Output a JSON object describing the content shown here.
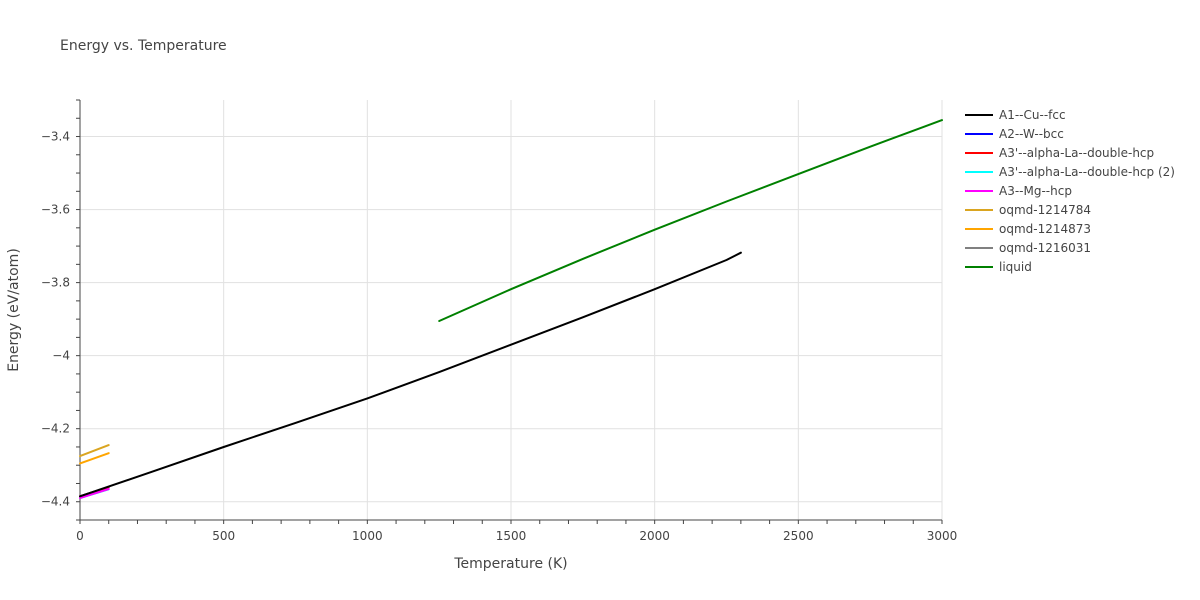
{
  "chart_data": {
    "type": "line",
    "title": "Energy vs. Temperature",
    "xlabel": "Temperature (K)",
    "ylabel": "Energy (eV/atom)",
    "xlim": [
      0,
      3000
    ],
    "ylim": [
      -4.45,
      -3.3
    ],
    "x_ticks": [
      0,
      500,
      1000,
      1500,
      2000,
      2500,
      3000
    ],
    "x_tick_labels": [
      "0",
      "500",
      "1000",
      "1500",
      "2000",
      "2500",
      "3000"
    ],
    "y_ticks": [
      -4.4,
      -4.2,
      -4.0,
      -3.8,
      -3.6,
      -3.4
    ],
    "y_tick_labels": [
      "−4.4",
      "−4.2",
      "−4",
      "−3.8",
      "−3.6",
      "−3.4"
    ],
    "grid": true,
    "legend_position": "right",
    "series": [
      {
        "name": "A1--Cu--fcc",
        "color": "#000000",
        "x": [
          0,
          250,
          500,
          750,
          1000,
          1250,
          1500,
          1750,
          2000,
          2250,
          2300
        ],
        "y": [
          -4.385,
          -4.318,
          -4.25,
          -4.184,
          -4.117,
          -4.045,
          -3.97,
          -3.895,
          -3.818,
          -3.738,
          -3.718
        ]
      },
      {
        "name": "A2--W--bcc",
        "color": "#0000ff",
        "x": [
          0,
          100
        ],
        "y": [
          -4.385,
          -4.36
        ]
      },
      {
        "name": "A3'--alpha-La--double-hcp",
        "color": "#ff0000",
        "x": [
          0,
          100
        ],
        "y": [
          -4.385,
          -4.36
        ]
      },
      {
        "name": "A3'--alpha-La--double-hcp (2)",
        "color": "#00ffff",
        "x": [
          0,
          100
        ],
        "y": [
          -4.39,
          -4.366
        ]
      },
      {
        "name": "A3--Mg--hcp",
        "color": "#ff00ff",
        "x": [
          0,
          100
        ],
        "y": [
          -4.39,
          -4.365
        ]
      },
      {
        "name": "oqmd-1214784",
        "color": "#daa520",
        "x": [
          0,
          100
        ],
        "y": [
          -4.275,
          -4.245
        ]
      },
      {
        "name": "oqmd-1214873",
        "color": "#ffa500",
        "x": [
          0,
          100
        ],
        "y": [
          -4.295,
          -4.267
        ]
      },
      {
        "name": "oqmd-1216031",
        "color": "#808080",
        "x": [
          0,
          100
        ],
        "y": [
          -4.385,
          -4.36
        ]
      },
      {
        "name": "liquid",
        "color": "#008000",
        "x": [
          1250,
          1500,
          1750,
          2000,
          2250,
          2500,
          2750,
          3000
        ],
        "y": [
          -3.905,
          -3.818,
          -3.735,
          -3.655,
          -3.578,
          -3.503,
          -3.428,
          -3.355
        ]
      }
    ]
  }
}
